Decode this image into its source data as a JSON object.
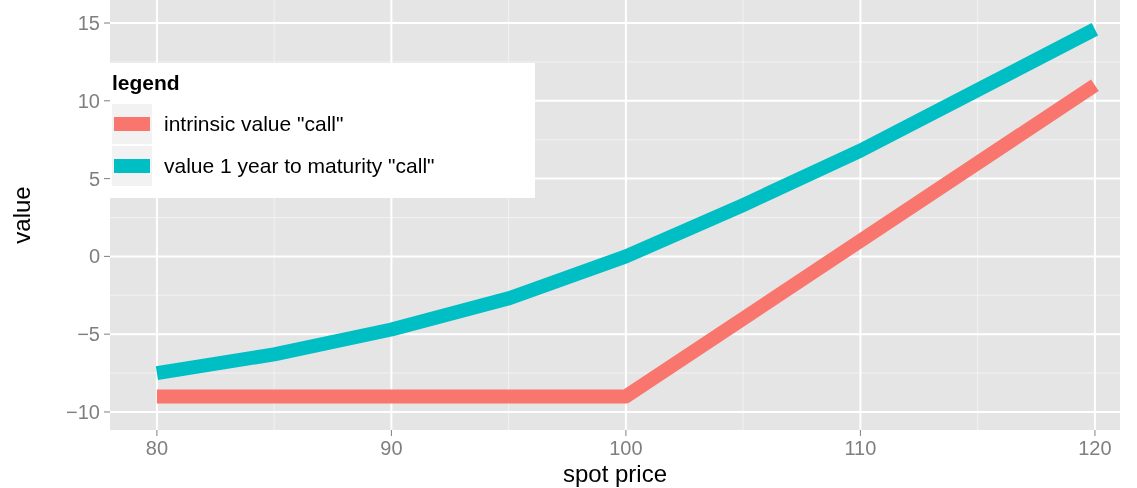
{
  "chart_data": {
    "type": "line",
    "xlabel": "spot price",
    "ylabel": "value",
    "legend_title": "legend",
    "legend": "top left",
    "grid": true,
    "xlim": [
      78,
      121.07
    ],
    "ylim": [
      -11.16,
      16.48
    ],
    "xticks": [
      80,
      90,
      100,
      110,
      120
    ],
    "yticks": [
      -10,
      -5,
      0,
      5,
      10,
      15
    ],
    "series": [
      {
        "name": "intrinsic value \"call\"",
        "color": "#f8766d",
        "x": [
          80,
          100,
          120
        ],
        "values": [
          -9,
          -9,
          11
        ]
      },
      {
        "name": "value 1 year to maturity \"call\"",
        "color": "#00bfc4",
        "x": [
          80,
          85,
          90,
          95,
          100,
          105,
          110,
          115,
          120
        ],
        "values": [
          -7.5,
          -6.3,
          -4.7,
          -2.7,
          0,
          3.3,
          6.8,
          10.7,
          14.6
        ]
      }
    ]
  }
}
